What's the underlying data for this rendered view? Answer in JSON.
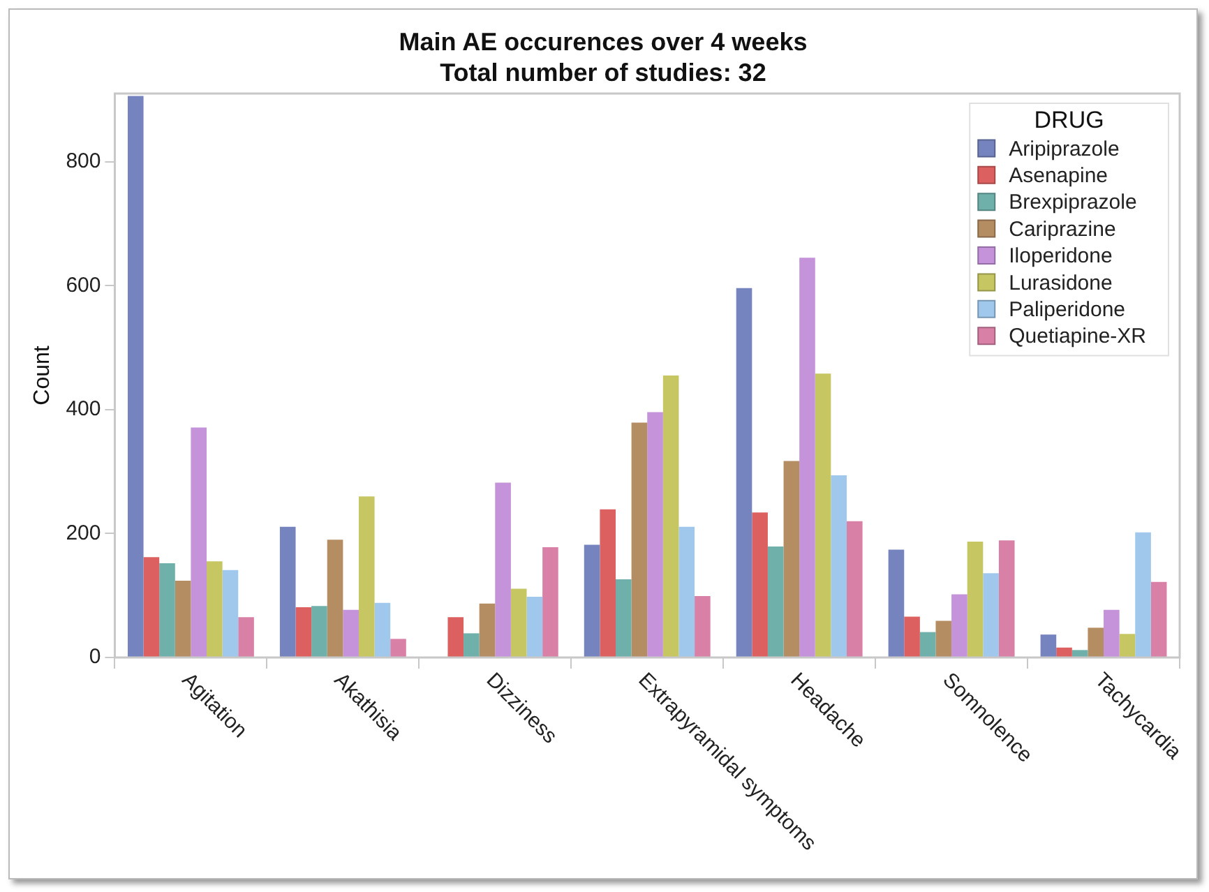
{
  "chart_data": {
    "type": "bar",
    "title": "Main AE occurences over 4 weeks",
    "subtitle": "Total number of studies: 32",
    "ylabel": "Count",
    "legend_title": "DRUG",
    "legend": "top right",
    "grid": false,
    "categories": [
      "Agitation",
      "Akathisia",
      "Dizziness",
      "Extrapyramidal symptoms",
      "Headache",
      "Somnolence",
      "Tachycardia"
    ],
    "ylim": [
      0,
      910
    ],
    "yticks": [
      0,
      200,
      400,
      600,
      800
    ],
    "series": [
      {
        "name": "Aripiprazole",
        "color": "#7584bf",
        "values": [
          906,
          211,
          0,
          182,
          596,
          174,
          37
        ]
      },
      {
        "name": "Asenapine",
        "color": "#dd6060",
        "values": [
          162,
          81,
          65,
          239,
          234,
          66,
          16
        ]
      },
      {
        "name": "Brexpiprazole",
        "color": "#70b0aa",
        "values": [
          152,
          83,
          39,
          126,
          179,
          41,
          12
        ]
      },
      {
        "name": "Cariprazine",
        "color": "#b58d62",
        "values": [
          124,
          190,
          87,
          379,
          317,
          59,
          48
        ]
      },
      {
        "name": "Iloperidone",
        "color": "#c493da",
        "values": [
          371,
          77,
          282,
          396,
          645,
          102,
          77
        ]
      },
      {
        "name": "Lurasidone",
        "color": "#c6c663",
        "values": [
          155,
          260,
          111,
          455,
          458,
          187,
          38
        ]
      },
      {
        "name": "Paliperidone",
        "color": "#9fc8ec",
        "values": [
          141,
          88,
          98,
          211,
          294,
          136,
          202
        ]
      },
      {
        "name": "Quetiapine-XR",
        "color": "#d980a6",
        "values": [
          65,
          30,
          178,
          99,
          220,
          189,
          122
        ]
      }
    ]
  }
}
